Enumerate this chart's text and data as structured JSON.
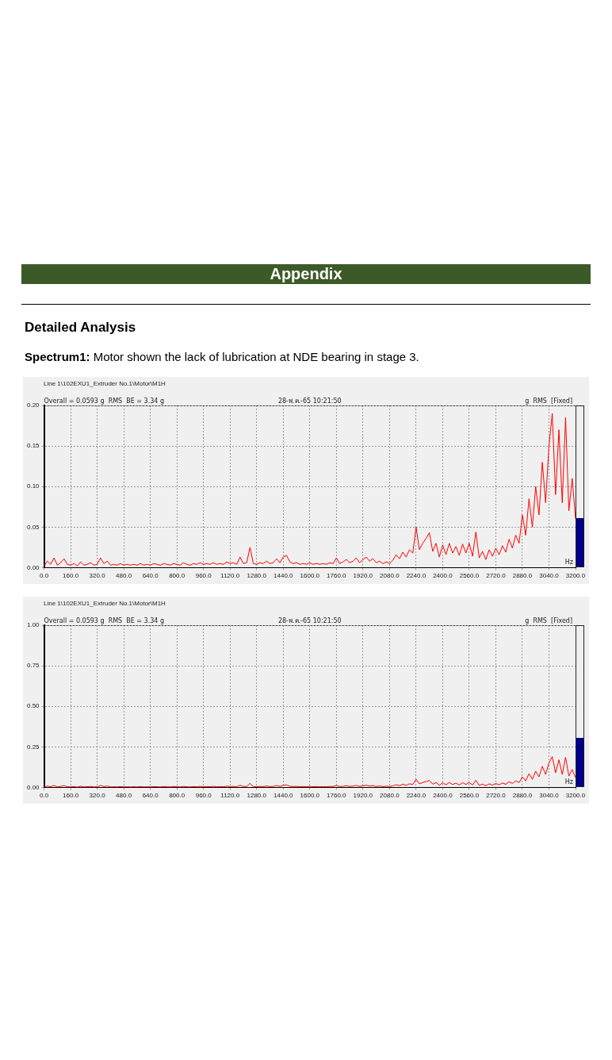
{
  "chart_data": [
    {
      "type": "other",
      "title": "Appendix",
      "subtitle": "Detailed Analysis",
      "annotations": [
        "Spectrum1: Motor shown the lack of lubrication at NDE bearing in stage 3."
      ]
    },
    {
      "type": "line",
      "title": "Line 1\\102EXU1_Extruder No.1\\Motor\\M1H",
      "xlabel": "Hz",
      "annotations": [
        "Overall = 0.0593 g  RMS  BE = 3.34 g",
        "28-พ.ค.-65 10:21:50",
        "g  RMS  [Fixed]"
      ],
      "grid": true,
      "legend": false,
      "marker": "none",
      "xlim": [
        0,
        3200
      ],
      "xticks": [
        {
          "value": 0,
          "label": "0.0"
        },
        {
          "value": 160,
          "label": "160.0"
        },
        {
          "value": 320,
          "label": "320.0"
        },
        {
          "value": 480,
          "label": "480.0"
        },
        {
          "value": 640,
          "label": "640.0"
        },
        {
          "value": 800,
          "label": "800.0"
        },
        {
          "value": 960,
          "label": "960.0"
        },
        {
          "value": 1120,
          "label": "1120.0"
        },
        {
          "value": 1280,
          "label": "1280.0"
        },
        {
          "value": 1440,
          "label": "1440.0"
        },
        {
          "value": 1600,
          "label": "1600.0"
        },
        {
          "value": 1760,
          "label": "1760.0"
        },
        {
          "value": 1920,
          "label": "1920.0"
        },
        {
          "value": 2080,
          "label": "2080.0"
        },
        {
          "value": 2240,
          "label": "2240.0"
        },
        {
          "value": 2400,
          "label": "2400.0"
        },
        {
          "value": 2560,
          "label": "2560.0"
        },
        {
          "value": 2720,
          "label": "2720.0"
        },
        {
          "value": 2880,
          "label": "2880.0"
        },
        {
          "value": 3040,
          "label": "3040.0"
        },
        {
          "value": 3200,
          "label": "3200.0"
        }
      ],
      "ylim": [
        0,
        0.2
      ],
      "yticks": [
        {
          "value": 0,
          "label": "0.00"
        },
        {
          "value": 0.05,
          "label": "0.05"
        },
        {
          "value": 0.1,
          "label": "0.10"
        },
        {
          "value": 0.15,
          "label": "0.15"
        },
        {
          "value": 0.2,
          "label": "0.20"
        }
      ],
      "x": [
        0,
        20,
        40,
        60,
        80,
        100,
        120,
        140,
        160,
        180,
        200,
        220,
        240,
        260,
        280,
        300,
        320,
        340,
        360,
        380,
        400,
        420,
        440,
        460,
        480,
        500,
        520,
        540,
        560,
        580,
        600,
        620,
        640,
        660,
        680,
        700,
        720,
        740,
        760,
        780,
        800,
        820,
        840,
        860,
        880,
        900,
        920,
        940,
        960,
        980,
        1000,
        1020,
        1040,
        1060,
        1080,
        1100,
        1120,
        1140,
        1160,
        1180,
        1200,
        1220,
        1240,
        1260,
        1280,
        1300,
        1320,
        1340,
        1360,
        1380,
        1400,
        1420,
        1440,
        1460,
        1480,
        1500,
        1520,
        1540,
        1560,
        1580,
        1600,
        1620,
        1640,
        1660,
        1680,
        1700,
        1720,
        1740,
        1760,
        1780,
        1800,
        1820,
        1840,
        1860,
        1880,
        1900,
        1920,
        1940,
        1960,
        1980,
        2000,
        2020,
        2040,
        2060,
        2080,
        2100,
        2120,
        2140,
        2160,
        2180,
        2200,
        2220,
        2240,
        2260,
        2280,
        2300,
        2320,
        2340,
        2360,
        2380,
        2400,
        2420,
        2440,
        2460,
        2480,
        2500,
        2520,
        2540,
        2560,
        2580,
        2600,
        2620,
        2640,
        2660,
        2680,
        2700,
        2720,
        2740,
        2760,
        2780,
        2800,
        2820,
        2840,
        2860,
        2880,
        2900,
        2920,
        2940,
        2960,
        2980,
        3000,
        3020,
        3040,
        3060,
        3080,
        3100,
        3120,
        3140,
        3160,
        3180,
        3200
      ],
      "series": [
        {
          "color": "#ff0000",
          "values": [
            0.002,
            0.008,
            0.004,
            0.012,
            0.003,
            0.006,
            0.011,
            0.004,
            0.003,
            0.005,
            0.002,
            0.007,
            0.003,
            0.004,
            0.006,
            0.003,
            0.004,
            0.012,
            0.005,
            0.008,
            0.003,
            0.004,
            0.003,
            0.005,
            0.003,
            0.004,
            0.003,
            0.004,
            0.003,
            0.005,
            0.003,
            0.004,
            0.003,
            0.005,
            0.004,
            0.003,
            0.005,
            0.004,
            0.003,
            0.005,
            0.004,
            0.003,
            0.006,
            0.004,
            0.003,
            0.005,
            0.004,
            0.006,
            0.004,
            0.005,
            0.004,
            0.006,
            0.004,
            0.005,
            0.004,
            0.007,
            0.005,
            0.006,
            0.004,
            0.013,
            0.005,
            0.006,
            0.025,
            0.005,
            0.004,
            0.006,
            0.005,
            0.008,
            0.005,
            0.006,
            0.011,
            0.006,
            0.013,
            0.015,
            0.007,
            0.005,
            0.006,
            0.004,
            0.005,
            0.004,
            0.006,
            0.004,
            0.005,
            0.004,
            0.005,
            0.004,
            0.006,
            0.005,
            0.012,
            0.005,
            0.007,
            0.01,
            0.006,
            0.008,
            0.012,
            0.006,
            0.01,
            0.013,
            0.008,
            0.011,
            0.006,
            0.008,
            0.005,
            0.007,
            0.005,
            0.009,
            0.016,
            0.011,
            0.019,
            0.013,
            0.022,
            0.018,
            0.05,
            0.022,
            0.03,
            0.036,
            0.043,
            0.02,
            0.03,
            0.013,
            0.028,
            0.016,
            0.03,
            0.018,
            0.026,
            0.015,
            0.029,
            0.018,
            0.03,
            0.014,
            0.044,
            0.012,
            0.02,
            0.01,
            0.022,
            0.014,
            0.024,
            0.016,
            0.027,
            0.019,
            0.035,
            0.024,
            0.04,
            0.03,
            0.065,
            0.04,
            0.085,
            0.05,
            0.1,
            0.065,
            0.13,
            0.08,
            0.15,
            0.19,
            0.09,
            0.17,
            0.08,
            0.185,
            0.07,
            0.11,
            0.06
          ]
        }
      ]
    },
    {
      "type": "line",
      "title": "Line 1\\102EXU1_Extruder No.1\\Motor\\M1H",
      "xlabel": "Hz",
      "annotations": [
        "Overall = 0.0593 g  RMS  BE = 3.34 g",
        "28-พ.ค.-65 10:21:50",
        "g  RMS  [Fixed]"
      ],
      "grid": true,
      "legend": false,
      "marker": "none",
      "xlim": [
        0,
        3200
      ],
      "xticks": [
        {
          "value": 0,
          "label": "0.0"
        },
        {
          "value": 160,
          "label": "160.0"
        },
        {
          "value": 320,
          "label": "320.0"
        },
        {
          "value": 480,
          "label": "480.0"
        },
        {
          "value": 640,
          "label": "640.0"
        },
        {
          "value": 800,
          "label": "800.0"
        },
        {
          "value": 960,
          "label": "960.0"
        },
        {
          "value": 1120,
          "label": "1120.0"
        },
        {
          "value": 1280,
          "label": "1280.0"
        },
        {
          "value": 1440,
          "label": "1440.0"
        },
        {
          "value": 1600,
          "label": "1600.0"
        },
        {
          "value": 1760,
          "label": "1760.0"
        },
        {
          "value": 1920,
          "label": "1920.0"
        },
        {
          "value": 2080,
          "label": "2080.0"
        },
        {
          "value": 2240,
          "label": "2240.0"
        },
        {
          "value": 2400,
          "label": "2400.0"
        },
        {
          "value": 2560,
          "label": "2560.0"
        },
        {
          "value": 2720,
          "label": "2720.0"
        },
        {
          "value": 2880,
          "label": "2880.0"
        },
        {
          "value": 3040,
          "label": "3040.0"
        },
        {
          "value": 3200,
          "label": "3200.0"
        }
      ],
      "ylim": [
        0,
        1
      ],
      "yticks": [
        {
          "value": 0,
          "label": "0.00"
        },
        {
          "value": 0.25,
          "label": "0.25"
        },
        {
          "value": 0.5,
          "label": "0.50"
        },
        {
          "value": 0.75,
          "label": "0.75"
        },
        {
          "value": 1,
          "label": "1.00"
        }
      ],
      "x": [
        0,
        20,
        40,
        60,
        80,
        100,
        120,
        140,
        160,
        180,
        200,
        220,
        240,
        260,
        280,
        300,
        320,
        340,
        360,
        380,
        400,
        420,
        440,
        460,
        480,
        500,
        520,
        540,
        560,
        580,
        600,
        620,
        640,
        660,
        680,
        700,
        720,
        740,
        760,
        780,
        800,
        820,
        840,
        860,
        880,
        900,
        920,
        940,
        960,
        980,
        1000,
        1020,
        1040,
        1060,
        1080,
        1100,
        1120,
        1140,
        1160,
        1180,
        1200,
        1220,
        1240,
        1260,
        1280,
        1300,
        1320,
        1340,
        1360,
        1380,
        1400,
        1420,
        1440,
        1460,
        1480,
        1500,
        1520,
        1540,
        1560,
        1580,
        1600,
        1620,
        1640,
        1660,
        1680,
        1700,
        1720,
        1740,
        1760,
        1780,
        1800,
        1820,
        1840,
        1860,
        1880,
        1900,
        1920,
        1940,
        1960,
        1980,
        2000,
        2020,
        2040,
        2060,
        2080,
        2100,
        2120,
        2140,
        2160,
        2180,
        2200,
        2220,
        2240,
        2260,
        2280,
        2300,
        2320,
        2340,
        2360,
        2380,
        2400,
        2420,
        2440,
        2460,
        2480,
        2500,
        2520,
        2540,
        2560,
        2580,
        2600,
        2620,
        2640,
        2660,
        2680,
        2700,
        2720,
        2740,
        2760,
        2780,
        2800,
        2820,
        2840,
        2860,
        2880,
        2900,
        2920,
        2940,
        2960,
        2980,
        3000,
        3020,
        3040,
        3060,
        3080,
        3100,
        3120,
        3140,
        3160,
        3180,
        3200
      ],
      "series": [
        {
          "color": "#ff0000",
          "values": [
            0.002,
            0.008,
            0.004,
            0.012,
            0.003,
            0.006,
            0.011,
            0.004,
            0.003,
            0.005,
            0.002,
            0.007,
            0.003,
            0.004,
            0.006,
            0.003,
            0.004,
            0.012,
            0.005,
            0.008,
            0.003,
            0.004,
            0.003,
            0.005,
            0.003,
            0.004,
            0.003,
            0.004,
            0.003,
            0.005,
            0.003,
            0.004,
            0.003,
            0.005,
            0.004,
            0.003,
            0.005,
            0.004,
            0.003,
            0.005,
            0.004,
            0.003,
            0.006,
            0.004,
            0.003,
            0.005,
            0.004,
            0.006,
            0.004,
            0.005,
            0.004,
            0.006,
            0.004,
            0.005,
            0.004,
            0.007,
            0.005,
            0.006,
            0.004,
            0.013,
            0.005,
            0.006,
            0.025,
            0.005,
            0.004,
            0.006,
            0.005,
            0.008,
            0.005,
            0.006,
            0.011,
            0.006,
            0.013,
            0.015,
            0.007,
            0.005,
            0.006,
            0.004,
            0.005,
            0.004,
            0.006,
            0.004,
            0.005,
            0.004,
            0.005,
            0.004,
            0.006,
            0.005,
            0.012,
            0.005,
            0.007,
            0.01,
            0.006,
            0.008,
            0.012,
            0.006,
            0.01,
            0.013,
            0.008,
            0.011,
            0.006,
            0.008,
            0.005,
            0.007,
            0.005,
            0.009,
            0.016,
            0.011,
            0.019,
            0.013,
            0.022,
            0.018,
            0.05,
            0.022,
            0.03,
            0.036,
            0.043,
            0.02,
            0.03,
            0.013,
            0.028,
            0.016,
            0.03,
            0.018,
            0.026,
            0.015,
            0.029,
            0.018,
            0.03,
            0.014,
            0.044,
            0.012,
            0.02,
            0.01,
            0.022,
            0.014,
            0.024,
            0.016,
            0.027,
            0.019,
            0.035,
            0.024,
            0.04,
            0.03,
            0.065,
            0.04,
            0.085,
            0.05,
            0.1,
            0.065,
            0.13,
            0.08,
            0.15,
            0.19,
            0.09,
            0.17,
            0.08,
            0.185,
            0.07,
            0.11,
            0.06
          ]
        }
      ]
    }
  ]
}
